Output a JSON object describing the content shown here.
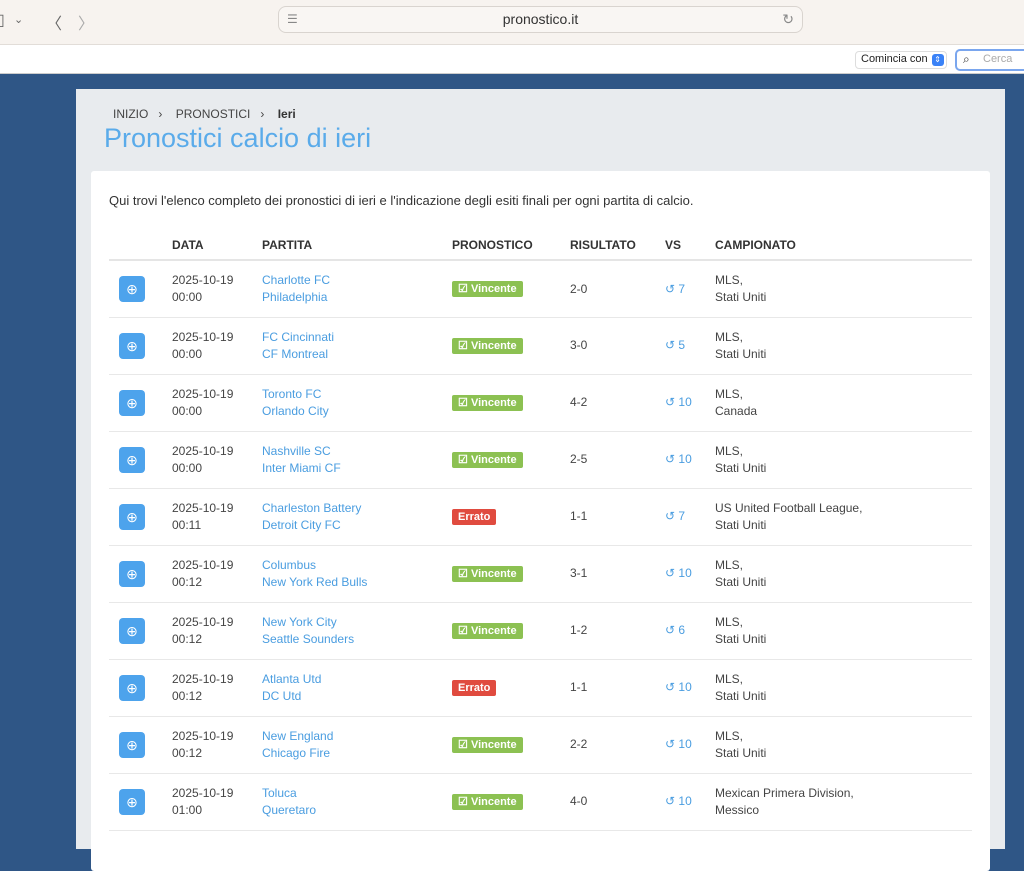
{
  "browser": {
    "url": "pronostico.it",
    "search_mode": "Comincia con",
    "search_placeholder": "Cerca"
  },
  "breadcrumb": [
    "INIZIO",
    "PRONOSTICI",
    "Ieri"
  ],
  "title": "Pronostici calcio di ieri",
  "intro": "Qui trovi l'elenco completo dei pronostici di ieri e l'indicazione degli esiti finali per ogni partita di calcio.",
  "columns": [
    "",
    "DATA",
    "PARTITA",
    "PRONOSTICO",
    "RISULTATO",
    "VS",
    "CAMPIONATO"
  ],
  "colors": {
    "win": "#8cc152",
    "wrong": "#e04b3f",
    "accent": "#4da3ec"
  },
  "rows": [
    {
      "date": "2025-10-19",
      "time": "00:00",
      "home": "Charlotte FC",
      "away": "Philadelphia",
      "status": "Vincente",
      "result": "2-0",
      "vs": "7",
      "league": "MLS,",
      "country": "Stati Uniti"
    },
    {
      "date": "2025-10-19",
      "time": "00:00",
      "home": "FC Cincinnati",
      "away": "CF Montreal",
      "status": "Vincente",
      "result": "3-0",
      "vs": "5",
      "league": "MLS,",
      "country": "Stati Uniti"
    },
    {
      "date": "2025-10-19",
      "time": "00:00",
      "home": "Toronto FC",
      "away": "Orlando City",
      "status": "Vincente",
      "result": "4-2",
      "vs": "10",
      "league": "MLS,",
      "country": "Canada"
    },
    {
      "date": "2025-10-19",
      "time": "00:00",
      "home": "Nashville SC",
      "away": "Inter Miami CF",
      "status": "Vincente",
      "result": "2-5",
      "vs": "10",
      "league": "MLS,",
      "country": "Stati Uniti"
    },
    {
      "date": "2025-10-19",
      "time": "00:11",
      "home": "Charleston Battery",
      "away": "Detroit City FC",
      "status": "Errato",
      "result": "1-1",
      "vs": "7",
      "league": "US United Football League,",
      "country": "Stati Uniti"
    },
    {
      "date": "2025-10-19",
      "time": "00:12",
      "home": "Columbus",
      "away": "New York Red Bulls",
      "status": "Vincente",
      "result": "3-1",
      "vs": "10",
      "league": "MLS,",
      "country": "Stati Uniti"
    },
    {
      "date": "2025-10-19",
      "time": "00:12",
      "home": "New York City",
      "away": "Seattle Sounders",
      "status": "Vincente",
      "result": "1-2",
      "vs": "6",
      "league": "MLS,",
      "country": "Stati Uniti"
    },
    {
      "date": "2025-10-19",
      "time": "00:12",
      "home": "Atlanta Utd",
      "away": "DC Utd",
      "status": "Errato",
      "result": "1-1",
      "vs": "10",
      "league": "MLS,",
      "country": "Stati Uniti"
    },
    {
      "date": "2025-10-19",
      "time": "00:12",
      "home": "New England",
      "away": "Chicago Fire",
      "status": "Vincente",
      "result": "2-2",
      "vs": "10",
      "league": "MLS,",
      "country": "Stati Uniti"
    },
    {
      "date": "2025-10-19",
      "time": "01:00",
      "home": "Toluca",
      "away": "Queretaro",
      "status": "Vincente",
      "result": "4-0",
      "vs": "10",
      "league": "Mexican Primera Division,",
      "country": "Messico"
    }
  ]
}
